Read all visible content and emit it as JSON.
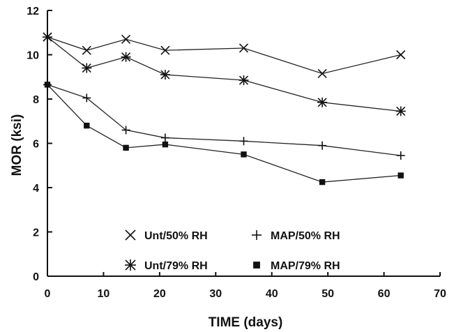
{
  "chart_data": {
    "type": "line",
    "xlabel": "TIME (days)",
    "ylabel": "MOR (ksi)",
    "xlim": [
      0,
      70
    ],
    "ylim": [
      0,
      12
    ],
    "xticks": [
      0,
      10,
      20,
      30,
      40,
      50,
      60,
      70
    ],
    "yticks": [
      0,
      2,
      4,
      6,
      8,
      10,
      12
    ],
    "grid": false,
    "legend_position": "bottom-left inside plot",
    "series": [
      {
        "name": "Unt/50% RH",
        "marker": "x",
        "x": [
          0,
          7,
          14,
          21,
          35,
          49,
          63
        ],
        "y": [
          10.8,
          10.2,
          10.7,
          10.2,
          10.3,
          9.15,
          10.0
        ]
      },
      {
        "name": "Unt/79% RH",
        "marker": "asterisk",
        "x": [
          0,
          7,
          14,
          21,
          35,
          49,
          63
        ],
        "y": [
          10.8,
          9.4,
          9.9,
          9.1,
          8.85,
          7.85,
          7.45
        ]
      },
      {
        "name": "MAP/50% RH",
        "marker": "plus",
        "x": [
          0,
          7,
          14,
          21,
          35,
          49,
          63
        ],
        "y": [
          8.65,
          8.05,
          6.6,
          6.25,
          6.1,
          5.9,
          5.45
        ]
      },
      {
        "name": "MAP/79% RH",
        "marker": "square",
        "x": [
          0,
          7,
          14,
          21,
          35,
          49,
          63
        ],
        "y": [
          8.65,
          6.8,
          5.8,
          5.95,
          5.5,
          4.25,
          4.55
        ]
      }
    ]
  }
}
